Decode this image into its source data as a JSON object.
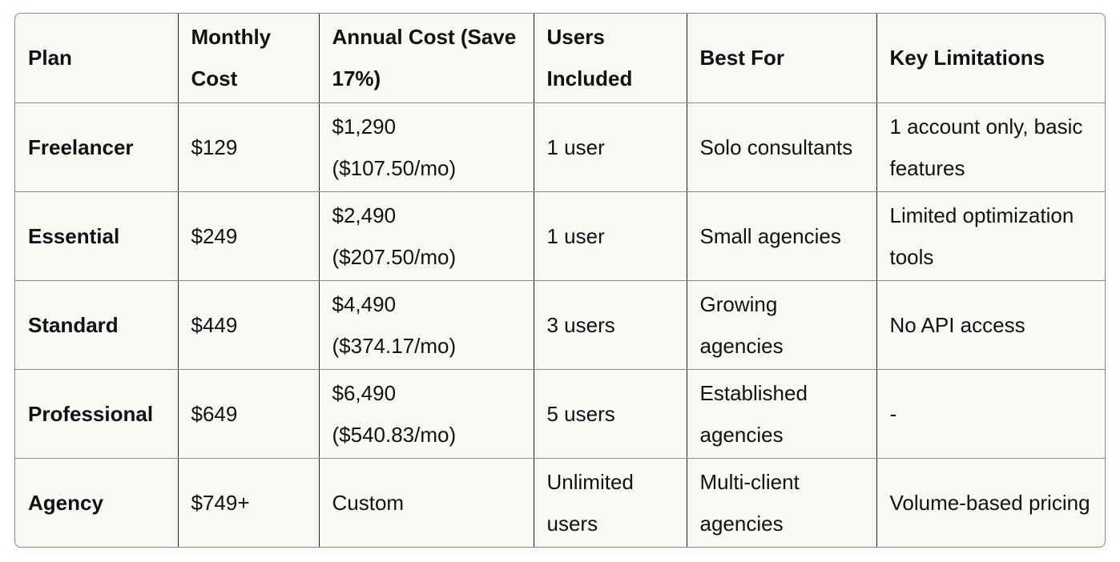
{
  "table": {
    "headers": [
      "Plan",
      "Monthly Cost",
      "Annual Cost (Save 17%)",
      "Users Included",
      "Best For",
      "Key Limitations"
    ],
    "rows": [
      [
        "Freelancer",
        "$129",
        "$1,290 ($107.50/mo)",
        "1 user",
        "Solo consultants",
        "1 account only, basic features"
      ],
      [
        "Essential",
        "$249",
        "$2,490 ($207.50/mo)",
        "1 user",
        "Small agencies",
        "Limited optimization tools"
      ],
      [
        "Standard",
        "$449",
        "$4,490 ($374.17/mo)",
        "3 users",
        "Growing agencies",
        "No API access"
      ],
      [
        "Professional",
        "$649",
        "$6,490 ($540.83/mo)",
        "5 users",
        "Established agencies",
        "-"
      ],
      [
        "Agency",
        "$749+",
        "Custom",
        "Unlimited users",
        "Multi-client agencies",
        "Volume-based pricing"
      ]
    ]
  }
}
